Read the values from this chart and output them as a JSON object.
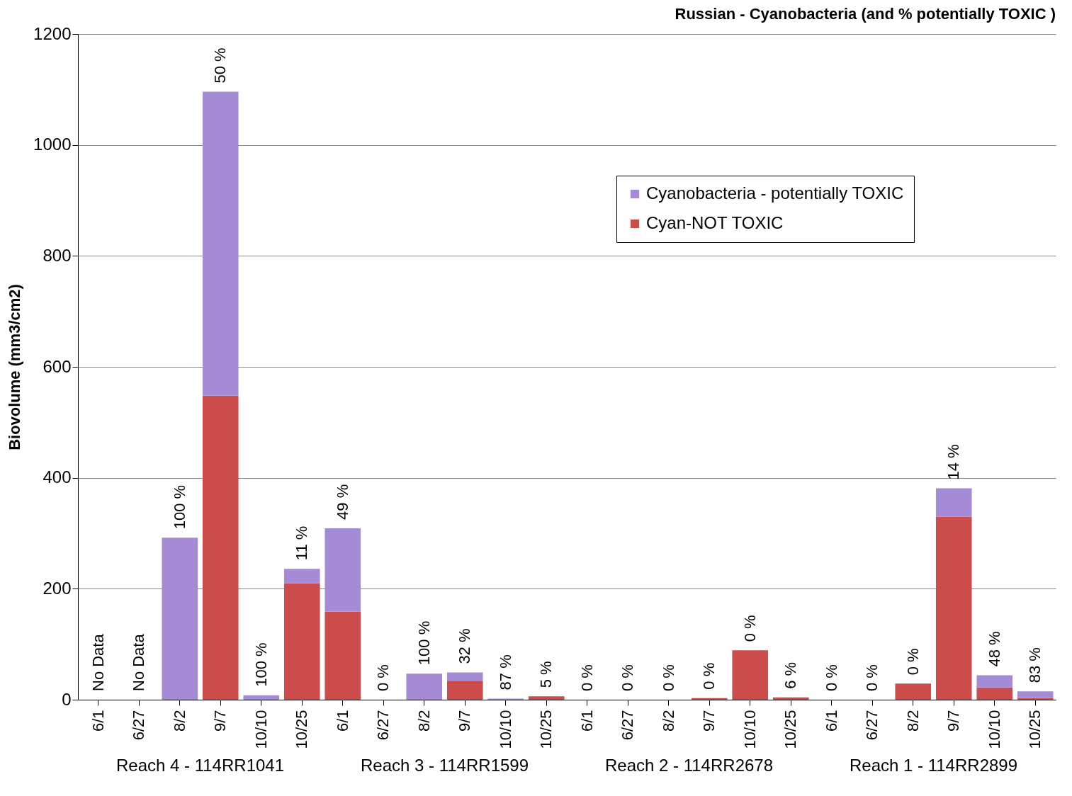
{
  "chart_data": {
    "type": "bar",
    "title": "Russian - Cyanobacteria (and % potentially TOXIC )",
    "ylabel": "Biovolume (mm3/cm2)",
    "stacked": true,
    "categories": [
      "6/1",
      "6/27",
      "8/2",
      "9/7",
      "10/10",
      "10/25",
      "6/1",
      "6/27",
      "8/2",
      "9/7",
      "10/10",
      "10/25",
      "6/1",
      "6/27",
      "8/2",
      "9/7",
      "10/10",
      "10/25",
      "6/1",
      "6/27",
      "8/2",
      "9/7",
      "10/10",
      "10/25"
    ],
    "series": [
      {
        "name": "Cyan-NOT TOXIC",
        "color": "#cc4b4b",
        "values": [
          null,
          null,
          0,
          548,
          0,
          210,
          159,
          0,
          0,
          34,
          0,
          6,
          0,
          0,
          0,
          3,
          89,
          4,
          0,
          0,
          29,
          330,
          22,
          3
        ]
      },
      {
        "name": "Cyanobacteria - potentially TOXIC",
        "color": "#a58bd6",
        "values": [
          null,
          null,
          292,
          548,
          8,
          26,
          150,
          0,
          47,
          15,
          2,
          0,
          0,
          0,
          0,
          0,
          0,
          0,
          0,
          0,
          0,
          51,
          22,
          12
        ]
      }
    ],
    "ylim": [
      0,
      1200
    ],
    "yticks": [
      0,
      200,
      400,
      600,
      800,
      1000,
      1200
    ],
    "grid": "y",
    "legend": "top right",
    "annotations": [
      "No Data",
      "No Data",
      "100 %",
      "50 %",
      "100 %",
      "11 %",
      "49 %",
      "0 %",
      "100 %",
      "32 %",
      "87 %",
      "5 %",
      "0 %",
      "0 %",
      "0 %",
      "0 %",
      "0 %",
      "6 %",
      "0 %",
      "0 %",
      "0 %",
      "14 %",
      "48 %",
      "83 %",
      "Reach 4 - 114RR1041",
      "Reach 3 - 114RR1599",
      "Reach 2 - 114RR2678",
      "Reach 1 - 114RR2899"
    ]
  }
}
